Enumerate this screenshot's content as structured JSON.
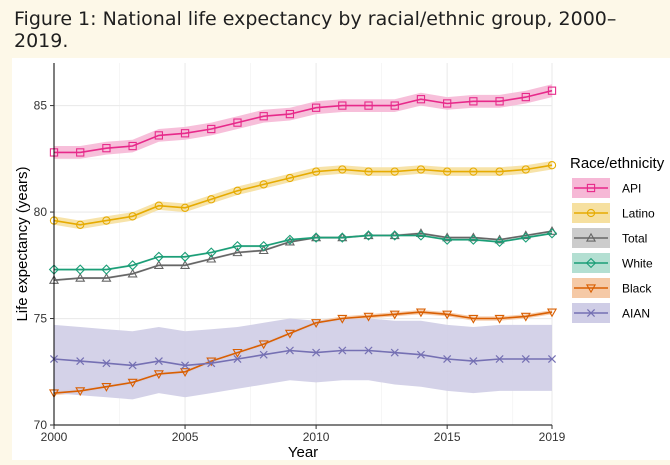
{
  "caption": {
    "text": "Figure 1: National life expectancy by racial/ethnic group, 2000–2019."
  },
  "colors": {
    "page_background": "#fdf8e8",
    "panel_background": "#ffffff",
    "grid": "#ebebeb"
  },
  "chart_data": {
    "type": "line",
    "title": "",
    "xlabel": "Year",
    "ylabel": "Life expectancy (years)",
    "xlim": [
      2000,
      2019
    ],
    "ylim": [
      70,
      87
    ],
    "x_ticks": [
      "2000",
      "2005",
      "2010",
      "2015",
      "2019"
    ],
    "x_tick_values": [
      2000,
      2005,
      2010,
      2015,
      2019
    ],
    "y_ticks": [
      "70",
      "75",
      "80",
      "85"
    ],
    "y_tick_values": [
      70,
      75,
      80,
      85
    ],
    "grid": true,
    "legend": {
      "title": "Race/ethnicity",
      "position": "right"
    },
    "x": [
      2000,
      2001,
      2002,
      2003,
      2004,
      2005,
      2006,
      2007,
      2008,
      2009,
      2010,
      2011,
      2012,
      2013,
      2014,
      2015,
      2016,
      2017,
      2018,
      2019
    ],
    "series": [
      {
        "name": "API",
        "color": "#e7298a",
        "band_color": "#f6b8d6",
        "marker": "square",
        "values": [
          82.8,
          82.8,
          83.0,
          83.1,
          83.6,
          83.7,
          83.9,
          84.2,
          84.5,
          84.6,
          84.9,
          85.0,
          85.0,
          85.0,
          85.3,
          85.1,
          85.2,
          85.2,
          85.4,
          85.7
        ],
        "ci_lower": [
          82.5,
          82.5,
          82.7,
          82.8,
          83.3,
          83.4,
          83.6,
          83.9,
          84.2,
          84.3,
          84.6,
          84.7,
          84.7,
          84.7,
          85.0,
          84.8,
          84.9,
          84.9,
          85.1,
          85.4
        ],
        "ci_upper": [
          83.1,
          83.1,
          83.3,
          83.4,
          83.9,
          84.0,
          84.2,
          84.5,
          84.8,
          84.9,
          85.2,
          85.3,
          85.3,
          85.3,
          85.6,
          85.4,
          85.5,
          85.5,
          85.7,
          86.0
        ]
      },
      {
        "name": "Latino",
        "color": "#e6ab02",
        "band_color": "#f6e0a0",
        "marker": "circle",
        "values": [
          79.6,
          79.4,
          79.6,
          79.8,
          80.3,
          80.2,
          80.6,
          81.0,
          81.3,
          81.6,
          81.9,
          82.0,
          81.9,
          81.9,
          82.0,
          81.9,
          81.9,
          81.9,
          82.0,
          82.2
        ],
        "ci_lower": [
          79.4,
          79.2,
          79.4,
          79.6,
          80.1,
          80.0,
          80.4,
          80.8,
          81.1,
          81.4,
          81.7,
          81.8,
          81.7,
          81.7,
          81.8,
          81.7,
          81.7,
          81.7,
          81.8,
          82.0
        ],
        "ci_upper": [
          79.8,
          79.6,
          79.8,
          80.0,
          80.5,
          80.4,
          80.8,
          81.2,
          81.5,
          81.8,
          82.1,
          82.2,
          82.1,
          82.1,
          82.2,
          82.1,
          82.1,
          82.1,
          82.2,
          82.4
        ]
      },
      {
        "name": "Total",
        "color": "#666666",
        "band_color": "#cccccc",
        "marker": "triangle",
        "values": [
          76.8,
          76.9,
          76.9,
          77.1,
          77.5,
          77.5,
          77.8,
          78.1,
          78.2,
          78.6,
          78.8,
          78.8,
          78.9,
          78.9,
          79.0,
          78.8,
          78.8,
          78.7,
          78.9,
          79.1
        ],
        "ci_lower": [
          76.75,
          76.85,
          76.85,
          77.05,
          77.45,
          77.45,
          77.75,
          78.05,
          78.15,
          78.55,
          78.75,
          78.75,
          78.85,
          78.85,
          78.95,
          78.75,
          78.75,
          78.65,
          78.85,
          79.05
        ],
        "ci_upper": [
          76.85,
          76.95,
          76.95,
          77.15,
          77.55,
          77.55,
          77.85,
          78.15,
          78.25,
          78.65,
          78.85,
          78.85,
          78.95,
          78.95,
          79.05,
          78.85,
          78.85,
          78.75,
          78.95,
          79.15
        ]
      },
      {
        "name": "White",
        "color": "#1b9e77",
        "band_color": "#b3dfd2",
        "marker": "diamond",
        "values": [
          77.3,
          77.3,
          77.3,
          77.5,
          77.9,
          77.9,
          78.1,
          78.4,
          78.4,
          78.7,
          78.8,
          78.8,
          78.9,
          78.9,
          78.9,
          78.7,
          78.7,
          78.6,
          78.8,
          79.0
        ],
        "ci_lower": [
          77.25,
          77.25,
          77.25,
          77.45,
          77.85,
          77.85,
          78.05,
          78.35,
          78.35,
          78.65,
          78.75,
          78.75,
          78.85,
          78.85,
          78.85,
          78.65,
          78.65,
          78.55,
          78.75,
          78.95
        ],
        "ci_upper": [
          77.35,
          77.35,
          77.35,
          77.55,
          77.95,
          77.95,
          78.15,
          78.45,
          78.45,
          78.75,
          78.85,
          78.85,
          78.95,
          78.95,
          78.95,
          78.75,
          78.75,
          78.65,
          78.85,
          79.05
        ]
      },
      {
        "name": "Black",
        "color": "#d95f02",
        "band_color": "#f5c9a6",
        "marker": "triangle-down",
        "values": [
          71.5,
          71.6,
          71.8,
          72.0,
          72.4,
          72.5,
          73.0,
          73.4,
          73.8,
          74.3,
          74.8,
          75.0,
          75.1,
          75.2,
          75.3,
          75.2,
          75.0,
          75.0,
          75.1,
          75.3
        ],
        "ci_lower": [
          71.4,
          71.5,
          71.7,
          71.9,
          72.3,
          72.4,
          72.9,
          73.3,
          73.7,
          74.2,
          74.7,
          74.9,
          75.0,
          75.1,
          75.2,
          75.1,
          74.9,
          74.9,
          75.0,
          75.2
        ],
        "ci_upper": [
          71.6,
          71.7,
          71.9,
          72.1,
          72.5,
          72.6,
          73.1,
          73.5,
          73.9,
          74.4,
          74.9,
          75.1,
          75.2,
          75.3,
          75.4,
          75.3,
          75.1,
          75.1,
          75.2,
          75.4
        ]
      },
      {
        "name": "AIAN",
        "color": "#7570b3",
        "band_color": "#cfcde6",
        "marker": "x",
        "values": [
          73.1,
          73.0,
          72.9,
          72.8,
          73.0,
          72.8,
          72.9,
          73.1,
          73.3,
          73.5,
          73.4,
          73.5,
          73.5,
          73.4,
          73.3,
          73.1,
          73.0,
          73.1,
          73.1,
          73.1
        ],
        "ci_lower": [
          71.5,
          71.4,
          71.3,
          71.2,
          71.5,
          71.3,
          71.5,
          71.7,
          71.9,
          72.1,
          72.0,
          72.1,
          72.1,
          71.9,
          71.8,
          71.6,
          71.5,
          71.6,
          71.6,
          71.6
        ],
        "ci_upper": [
          74.7,
          74.6,
          74.5,
          74.4,
          74.6,
          74.4,
          74.5,
          74.6,
          74.8,
          75.0,
          74.9,
          75.0,
          75.0,
          74.9,
          74.9,
          74.7,
          74.6,
          74.7,
          74.7,
          74.7
        ]
      }
    ]
  }
}
